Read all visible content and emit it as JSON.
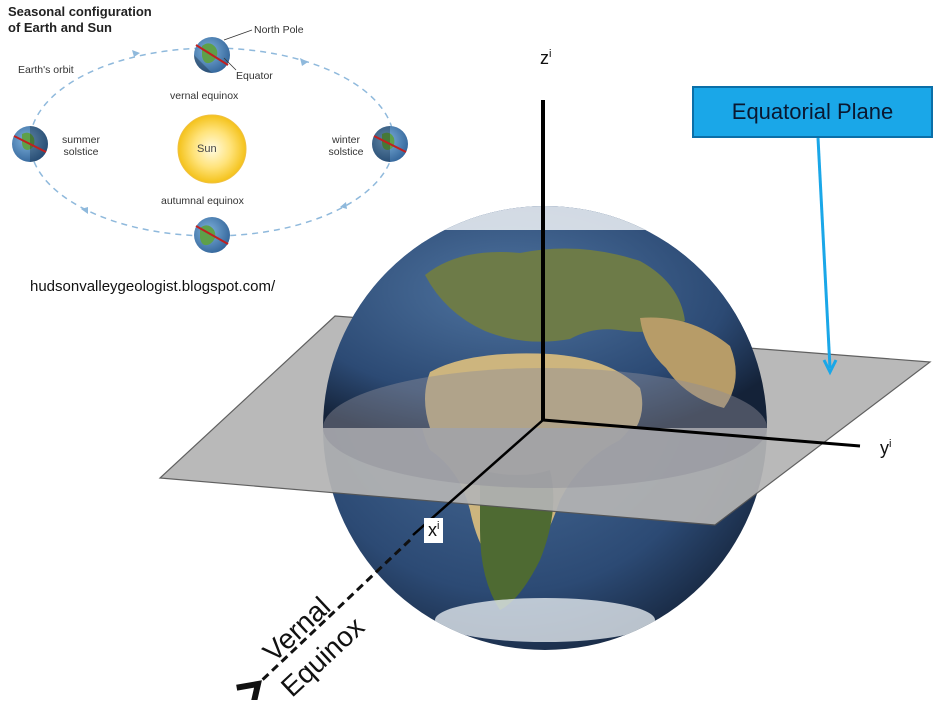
{
  "inset": {
    "title_line1": "Seasonal configuration",
    "title_line2": "of Earth and Sun",
    "north_pole": "North Pole",
    "equator": "Equator",
    "earths_orbit": "Earth's orbit",
    "vernal_equinox": "vernal equinox",
    "summer_line1": "summer",
    "summer_line2": "solstice",
    "winter_line1": "winter",
    "winter_line2": "solstice",
    "sun": "Sun",
    "autumnal_equinox": "autumnal equinox"
  },
  "source_credit": "hudsonvalleygeologist.blogspot.com/",
  "callout": {
    "label": "Equatorial Plane",
    "color": "#1aa7e8"
  },
  "axes": {
    "z": {
      "base": "z",
      "sup": "i"
    },
    "y": {
      "base": "y",
      "sup": "i"
    },
    "x": {
      "base": "x",
      "sup": "i"
    }
  },
  "vernal_equinox_arrow": {
    "line1": "Vernal",
    "line2": "Equinox"
  },
  "colors": {
    "plane": "#b4b4b4",
    "ocean": "#2e4f7a",
    "land": "#6a7a3c",
    "desert": "#d8c08a",
    "sun": "#ffd84a"
  }
}
